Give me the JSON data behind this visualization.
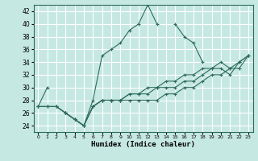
{
  "xlabel": "Humidex (Indice chaleur)",
  "xlim": [
    -0.5,
    23.5
  ],
  "ylim": [
    23,
    43
  ],
  "yticks": [
    24,
    26,
    28,
    30,
    32,
    34,
    36,
    38,
    40,
    42
  ],
  "xticks": [
    0,
    1,
    2,
    3,
    4,
    5,
    6,
    7,
    8,
    9,
    10,
    11,
    12,
    13,
    14,
    15,
    16,
    17,
    18,
    19,
    20,
    21,
    22,
    23
  ],
  "bg_color": "#c6e8e2",
  "grid_color": "#ffffff",
  "line_color": "#2e6b5e",
  "series": [
    [
      27,
      30,
      null,
      26,
      25,
      24,
      28,
      35,
      36,
      37,
      39,
      40,
      43,
      40,
      null,
      40,
      38,
      37,
      34,
      null,
      null,
      null,
      34,
      null
    ],
    [
      27,
      27,
      27,
      26,
      25,
      24,
      27,
      28,
      28,
      28,
      28,
      28,
      28,
      28,
      29,
      29,
      30,
      30,
      31,
      32,
      32,
      33,
      33,
      35
    ],
    [
      27,
      27,
      27,
      26,
      25,
      24,
      27,
      28,
      28,
      28,
      29,
      29,
      29,
      30,
      30,
      30,
      31,
      31,
      32,
      33,
      33,
      32,
      34,
      35
    ],
    [
      27,
      27,
      27,
      26,
      25,
      24,
      27,
      28,
      28,
      28,
      29,
      29,
      30,
      30,
      31,
      31,
      32,
      32,
      33,
      33,
      34,
      33,
      34,
      35
    ]
  ]
}
